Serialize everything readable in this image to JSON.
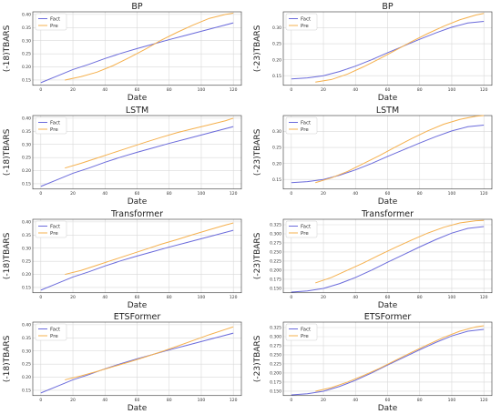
{
  "chart_data": [
    {
      "type": "line",
      "title": "BP",
      "xlabel": "Date",
      "ylabel": "(-18)TBARS",
      "xlim": [
        -5,
        125
      ],
      "ylim": [
        0.13,
        0.41
      ],
      "xticks": [
        0,
        20,
        40,
        60,
        80,
        100,
        120
      ],
      "yticks": [
        0.15,
        0.2,
        0.25,
        0.3,
        0.35,
        0.4
      ],
      "ytick_labels": [
        "0.15",
        "0.20",
        "0.25",
        "0.30",
        "0.35",
        "0.40"
      ],
      "grid": true,
      "legend": "top-left",
      "series": [
        {
          "name": "Fact",
          "color": "#6b6bdb",
          "x": [
            0,
            10,
            20,
            30,
            40,
            50,
            60,
            70,
            80,
            90,
            100,
            110,
            120
          ],
          "y": [
            0.14,
            0.165,
            0.19,
            0.21,
            0.232,
            0.252,
            0.27,
            0.287,
            0.304,
            0.32,
            0.336,
            0.352,
            0.368
          ]
        },
        {
          "name": "Pre",
          "color": "#f5b04d",
          "x": [
            15,
            25,
            35,
            45,
            55,
            65,
            75,
            85,
            95,
            105,
            115,
            120
          ],
          "y": [
            0.15,
            0.163,
            0.18,
            0.205,
            0.235,
            0.267,
            0.302,
            0.332,
            0.36,
            0.385,
            0.4,
            0.405
          ]
        }
      ]
    },
    {
      "type": "line",
      "title": "BP",
      "xlabel": "Date",
      "ylabel": "(-23)TBARS",
      "xlim": [
        -5,
        125
      ],
      "ylim": [
        0.12,
        0.35
      ],
      "xticks": [
        0,
        20,
        40,
        60,
        80,
        100,
        120
      ],
      "yticks": [
        0.15,
        0.2,
        0.25,
        0.3
      ],
      "ytick_labels": [
        "0.15",
        "0.20",
        "0.25",
        "0.30"
      ],
      "grid": true,
      "legend": "top-left",
      "series": [
        {
          "name": "Fact",
          "color": "#6b6bdb",
          "x": [
            0,
            10,
            20,
            30,
            40,
            50,
            60,
            70,
            80,
            90,
            100,
            110,
            120
          ],
          "y": [
            0.14,
            0.143,
            0.15,
            0.163,
            0.18,
            0.2,
            0.222,
            0.243,
            0.264,
            0.284,
            0.302,
            0.315,
            0.32
          ]
        },
        {
          "name": "Pre",
          "color": "#f5b04d",
          "x": [
            15,
            25,
            35,
            45,
            55,
            65,
            75,
            85,
            95,
            105,
            115,
            120
          ],
          "y": [
            0.13,
            0.138,
            0.155,
            0.178,
            0.203,
            0.23,
            0.257,
            0.282,
            0.305,
            0.325,
            0.34,
            0.345
          ]
        }
      ]
    },
    {
      "type": "line",
      "title": "LSTM",
      "xlabel": "Date",
      "ylabel": "(-18)TBARS",
      "xlim": [
        -5,
        125
      ],
      "ylim": [
        0.13,
        0.41
      ],
      "xticks": [
        0,
        20,
        40,
        60,
        80,
        100,
        120
      ],
      "yticks": [
        0.15,
        0.2,
        0.25,
        0.3,
        0.35,
        0.4
      ],
      "ytick_labels": [
        "0.15",
        "0.20",
        "0.25",
        "0.30",
        "0.35",
        "0.40"
      ],
      "grid": true,
      "legend": "top-left",
      "series": [
        {
          "name": "Fact",
          "color": "#6b6bdb",
          "x": [
            0,
            10,
            20,
            30,
            40,
            50,
            60,
            70,
            80,
            90,
            100,
            110,
            120
          ],
          "y": [
            0.14,
            0.165,
            0.19,
            0.21,
            0.232,
            0.252,
            0.27,
            0.287,
            0.304,
            0.32,
            0.336,
            0.352,
            0.368
          ]
        },
        {
          "name": "Pre",
          "color": "#f5b04d",
          "x": [
            15,
            25,
            35,
            45,
            55,
            65,
            75,
            85,
            95,
            105,
            115,
            120
          ],
          "y": [
            0.21,
            0.228,
            0.248,
            0.268,
            0.288,
            0.308,
            0.327,
            0.345,
            0.36,
            0.375,
            0.39,
            0.4
          ]
        }
      ]
    },
    {
      "type": "line",
      "title": "LSTM",
      "xlabel": "Date",
      "ylabel": "(-23)TBARS",
      "xlim": [
        -5,
        125
      ],
      "ylim": [
        0.12,
        0.35
      ],
      "xticks": [
        0,
        20,
        40,
        60,
        80,
        100,
        120
      ],
      "yticks": [
        0.15,
        0.2,
        0.25,
        0.3
      ],
      "ytick_labels": [
        "0.15",
        "0.20",
        "0.25",
        "0.30"
      ],
      "grid": true,
      "legend": "top-left",
      "series": [
        {
          "name": "Fact",
          "color": "#6b6bdb",
          "x": [
            0,
            10,
            20,
            30,
            40,
            50,
            60,
            70,
            80,
            90,
            100,
            110,
            120
          ],
          "y": [
            0.14,
            0.143,
            0.15,
            0.163,
            0.18,
            0.2,
            0.222,
            0.243,
            0.264,
            0.284,
            0.302,
            0.315,
            0.32
          ]
        },
        {
          "name": "Pre",
          "color": "#f5b04d",
          "x": [
            15,
            25,
            35,
            45,
            55,
            65,
            75,
            85,
            95,
            105,
            115,
            120
          ],
          "y": [
            0.14,
            0.155,
            0.175,
            0.2,
            0.225,
            0.252,
            0.278,
            0.302,
            0.323,
            0.338,
            0.348,
            0.35
          ]
        }
      ]
    },
    {
      "type": "line",
      "title": "Transformer",
      "xlabel": "Date",
      "ylabel": "(-18)TBARS",
      "xlim": [
        -5,
        125
      ],
      "ylim": [
        0.13,
        0.41
      ],
      "xticks": [
        0,
        20,
        40,
        60,
        80,
        100,
        120
      ],
      "yticks": [
        0.15,
        0.2,
        0.25,
        0.3,
        0.35,
        0.4
      ],
      "ytick_labels": [
        "0.15",
        "0.20",
        "0.25",
        "0.30",
        "0.35",
        "0.40"
      ],
      "grid": true,
      "legend": "top-left",
      "series": [
        {
          "name": "Fact",
          "color": "#6b6bdb",
          "x": [
            0,
            10,
            20,
            30,
            40,
            50,
            60,
            70,
            80,
            90,
            100,
            110,
            120
          ],
          "y": [
            0.14,
            0.165,
            0.19,
            0.21,
            0.232,
            0.252,
            0.27,
            0.287,
            0.304,
            0.32,
            0.336,
            0.352,
            0.368
          ]
        },
        {
          "name": "Pre",
          "color": "#f5b04d",
          "x": [
            15,
            25,
            35,
            45,
            55,
            65,
            75,
            85,
            95,
            105,
            115,
            120
          ],
          "y": [
            0.2,
            0.215,
            0.235,
            0.255,
            0.275,
            0.295,
            0.315,
            0.333,
            0.352,
            0.37,
            0.388,
            0.396
          ]
        }
      ]
    },
    {
      "type": "line",
      "title": "Transformer",
      "xlabel": "Date",
      "ylabel": "(-23)TBARS",
      "xlim": [
        -5,
        125
      ],
      "ylim": [
        0.138,
        0.34
      ],
      "xticks": [
        0,
        20,
        40,
        60,
        80,
        100,
        120
      ],
      "yticks": [
        0.15,
        0.175,
        0.2,
        0.225,
        0.25,
        0.275,
        0.3,
        0.325
      ],
      "ytick_labels": [
        "0.150",
        "0.175",
        "0.200",
        "0.225",
        "0.250",
        "0.275",
        "0.300",
        "0.325"
      ],
      "grid": true,
      "legend": "top-left",
      "series": [
        {
          "name": "Fact",
          "color": "#6b6bdb",
          "x": [
            0,
            10,
            20,
            30,
            40,
            50,
            60,
            70,
            80,
            90,
            100,
            110,
            120
          ],
          "y": [
            0.14,
            0.143,
            0.15,
            0.163,
            0.18,
            0.2,
            0.222,
            0.243,
            0.264,
            0.284,
            0.302,
            0.315,
            0.32
          ]
        },
        {
          "name": "Pre",
          "color": "#f5b04d",
          "x": [
            15,
            25,
            35,
            45,
            55,
            65,
            75,
            85,
            95,
            105,
            115,
            120
          ],
          "y": [
            0.165,
            0.18,
            0.2,
            0.22,
            0.242,
            0.263,
            0.283,
            0.302,
            0.318,
            0.33,
            0.336,
            0.337
          ]
        }
      ]
    },
    {
      "type": "line",
      "title": "ETSFormer",
      "xlabel": "Date",
      "ylabel": "(-18)TBARS",
      "xlim": [
        -5,
        125
      ],
      "ylim": [
        0.13,
        0.41
      ],
      "xticks": [
        0,
        20,
        40,
        60,
        80,
        100,
        120
      ],
      "yticks": [
        0.15,
        0.2,
        0.25,
        0.3,
        0.35,
        0.4
      ],
      "ytick_labels": [
        "0.15",
        "0.20",
        "0.25",
        "0.30",
        "0.35",
        "0.40"
      ],
      "grid": true,
      "legend": "top-left",
      "series": [
        {
          "name": "Fact",
          "color": "#6b6bdb",
          "x": [
            0,
            10,
            20,
            30,
            40,
            50,
            60,
            70,
            80,
            90,
            100,
            110,
            120
          ],
          "y": [
            0.14,
            0.165,
            0.19,
            0.21,
            0.232,
            0.252,
            0.27,
            0.287,
            0.304,
            0.32,
            0.336,
            0.352,
            0.368
          ]
        },
        {
          "name": "Pre",
          "color": "#f5b04d",
          "x": [
            15,
            25,
            35,
            45,
            55,
            65,
            75,
            85,
            95,
            105,
            115,
            120
          ],
          "y": [
            0.19,
            0.205,
            0.222,
            0.24,
            0.258,
            0.277,
            0.297,
            0.318,
            0.34,
            0.362,
            0.382,
            0.392
          ]
        }
      ]
    },
    {
      "type": "line",
      "title": "ETSFormer",
      "xlabel": "Date",
      "ylabel": "(-23)TBARS",
      "xlim": [
        -5,
        125
      ],
      "ylim": [
        0.138,
        0.34
      ],
      "xticks": [
        0,
        20,
        40,
        60,
        80,
        100,
        120
      ],
      "yticks": [
        0.15,
        0.175,
        0.2,
        0.225,
        0.25,
        0.275,
        0.3,
        0.325
      ],
      "ytick_labels": [
        "0.150",
        "0.175",
        "0.200",
        "0.225",
        "0.250",
        "0.275",
        "0.300",
        "0.325"
      ],
      "grid": true,
      "legend": "top-left",
      "series": [
        {
          "name": "Fact",
          "color": "#6b6bdb",
          "x": [
            0,
            10,
            20,
            30,
            40,
            50,
            60,
            70,
            80,
            90,
            100,
            110,
            120
          ],
          "y": [
            0.14,
            0.143,
            0.15,
            0.163,
            0.18,
            0.2,
            0.222,
            0.243,
            0.264,
            0.284,
            0.302,
            0.315,
            0.32
          ]
        },
        {
          "name": "Pre",
          "color": "#f5b04d",
          "x": [
            15,
            25,
            35,
            45,
            55,
            65,
            75,
            85,
            95,
            105,
            115,
            120
          ],
          "y": [
            0.15,
            0.16,
            0.175,
            0.193,
            0.213,
            0.235,
            0.257,
            0.278,
            0.298,
            0.315,
            0.327,
            0.33
          ]
        }
      ]
    }
  ]
}
